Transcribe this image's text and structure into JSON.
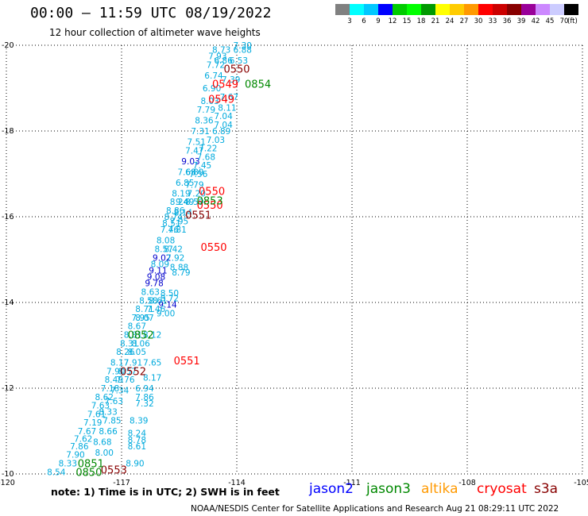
{
  "title": "00:00 — 11:59 UTC 08/19/2022",
  "subtitle": "12 hour collection of altimeter wave heights",
  "note": "note: 1) Time is in UTC; 2) SWH is in feet",
  "credit": "NOAA/NESDIS Center for Satellite Applications and Research   Aug 21 08:29:11 UTC 2022",
  "colorbar": {
    "unit": "(ft)",
    "ticks": [
      "3",
      "6",
      "9",
      "12",
      "15",
      "18",
      "21",
      "24",
      "27",
      "30",
      "33",
      "36",
      "39",
      "42",
      "45",
      "70"
    ],
    "colors": [
      "#808080",
      "#00ffff",
      "#00c8ff",
      "#0000ff",
      "#00cc00",
      "#00ff00",
      "#009900",
      "#ffff00",
      "#ffcc00",
      "#ff9900",
      "#ff0000",
      "#cc0000",
      "#880000",
      "#990099",
      "#cc88ff",
      "#ccccff",
      "#000000"
    ]
  },
  "satellites": [
    {
      "name": "jason2",
      "color": "#0000ff"
    },
    {
      "name": "jason3",
      "color": "#008800"
    },
    {
      "name": "altika",
      "color": "#ff9900"
    },
    {
      "name": "cryosat",
      "color": "#ff0000"
    },
    {
      "name": "s3a",
      "color": "#880000"
    }
  ],
  "chart_data": {
    "type": "scatter",
    "xlim": [
      -120,
      -105
    ],
    "ylim": [
      -20,
      -10
    ],
    "xticks": [
      "-120",
      "-117",
      "-114",
      "-111",
      "-108",
      "-105"
    ],
    "yticks": [
      "-10",
      "-12",
      "-14",
      "-16",
      "-18",
      "-20"
    ],
    "grid": true,
    "points": [
      {
        "lon": -118.7,
        "lat": -10.05,
        "label": "8.54",
        "color": "#00aadd"
      },
      {
        "lon": -118.4,
        "lat": -10.25,
        "label": "8.33",
        "color": "#00aadd"
      },
      {
        "lon": -118.2,
        "lat": -10.45,
        "label": "7.90",
        "color": "#00aadd"
      },
      {
        "lon": -118.1,
        "lat": -10.65,
        "label": "7.86",
        "color": "#00aadd"
      },
      {
        "lon": -118.0,
        "lat": -10.82,
        "label": "7.62",
        "color": "#00aadd"
      },
      {
        "lon": -117.9,
        "lat": -11.0,
        "label": "7.67",
        "color": "#00aadd"
      },
      {
        "lon": -117.75,
        "lat": -11.2,
        "label": "7.19",
        "color": "#00aadd"
      },
      {
        "lon": -117.65,
        "lat": -11.4,
        "label": "7.61",
        "color": "#00aadd"
      },
      {
        "lon": -117.55,
        "lat": -11.6,
        "label": "7.63",
        "color": "#00aadd"
      },
      {
        "lon": -117.45,
        "lat": -11.8,
        "label": "8.62",
        "color": "#00aadd"
      },
      {
        "lon": -117.3,
        "lat": -12.0,
        "label": "7.18",
        "color": "#00aadd"
      },
      {
        "lon": -117.2,
        "lat": -12.2,
        "label": "8.49",
        "color": "#00aadd"
      },
      {
        "lon": -117.15,
        "lat": -12.4,
        "label": "7.90",
        "color": "#00aadd"
      },
      {
        "lon": -117.05,
        "lat": -12.6,
        "label": "8.17",
        "color": "#00aadd"
      },
      {
        "lon": -116.9,
        "lat": -12.85,
        "label": "8.26",
        "color": "#00aadd"
      },
      {
        "lon": -116.8,
        "lat": -13.05,
        "label": "8.31",
        "color": "#00aadd"
      },
      {
        "lon": -116.7,
        "lat": -13.25,
        "label": "8.81",
        "color": "#00aadd"
      },
      {
        "lon": -116.6,
        "lat": -13.45,
        "label": "8.67",
        "color": "#00aadd"
      },
      {
        "lon": -116.5,
        "lat": -13.65,
        "label": "7.95",
        "color": "#00aadd"
      },
      {
        "lon": -116.4,
        "lat": -13.85,
        "label": "8.71",
        "color": "#00aadd"
      },
      {
        "lon": -116.3,
        "lat": -14.05,
        "label": "8.58",
        "color": "#00aadd"
      },
      {
        "lon": -116.25,
        "lat": -14.25,
        "label": "8.63",
        "color": "#00aadd"
      },
      {
        "lon": -116.15,
        "lat": -14.45,
        "label": "9.78",
        "color": "#0000cc"
      },
      {
        "lon": -116.1,
        "lat": -14.6,
        "label": "9.08",
        "color": "#0000cc"
      },
      {
        "lon": -116.05,
        "lat": -14.75,
        "label": "9.11",
        "color": "#0000cc"
      },
      {
        "lon": -116.0,
        "lat": -14.9,
        "label": "8.09",
        "color": "#00aadd"
      },
      {
        "lon": -115.95,
        "lat": -15.05,
        "label": "9.02",
        "color": "#0000cc"
      },
      {
        "lon": -115.9,
        "lat": -15.25,
        "label": "8.57",
        "color": "#00aadd"
      },
      {
        "lon": -115.85,
        "lat": -15.45,
        "label": "8.08",
        "color": "#00aadd"
      },
      {
        "lon": -115.75,
        "lat": -15.7,
        "label": "7.46",
        "color": "#00aadd"
      },
      {
        "lon": -115.7,
        "lat": -15.85,
        "label": "8.51",
        "color": "#00aadd"
      },
      {
        "lon": -115.65,
        "lat": -16.0,
        "label": "8.74",
        "color": "#00aadd"
      },
      {
        "lon": -115.6,
        "lat": -16.15,
        "label": "8.86",
        "color": "#00aadd"
      },
      {
        "lon": -115.5,
        "lat": -16.35,
        "label": "8.24",
        "color": "#00aadd"
      },
      {
        "lon": -115.45,
        "lat": -16.55,
        "label": "8.19",
        "color": "#00aadd"
      },
      {
        "lon": -115.35,
        "lat": -16.8,
        "label": "6.85",
        "color": "#00aadd"
      },
      {
        "lon": -115.3,
        "lat": -17.05,
        "label": "7.68",
        "color": "#00aadd"
      },
      {
        "lon": -115.2,
        "lat": -17.3,
        "label": "9.03",
        "color": "#0000cc"
      },
      {
        "lon": -115.1,
        "lat": -17.55,
        "label": "7.47",
        "color": "#00aadd"
      },
      {
        "lon": -115.05,
        "lat": -17.75,
        "label": "7.51",
        "color": "#00aadd"
      },
      {
        "lon": -114.95,
        "lat": -18.0,
        "label": "7.31",
        "color": "#00aadd"
      },
      {
        "lon": -114.85,
        "lat": -18.25,
        "label": "8.36",
        "color": "#00aadd"
      },
      {
        "lon": -114.8,
        "lat": -18.5,
        "label": "7.79",
        "color": "#00aadd"
      },
      {
        "lon": -114.7,
        "lat": -18.7,
        "label": "8.03",
        "color": "#00aadd"
      },
      {
        "lon": -114.65,
        "lat": -19.0,
        "label": "6.90",
        "color": "#00aadd"
      },
      {
        "lon": -114.6,
        "lat": -19.3,
        "label": "6.74",
        "color": "#00aadd"
      },
      {
        "lon": -114.55,
        "lat": -19.55,
        "label": "7.72",
        "color": "#00aadd"
      },
      {
        "lon": -114.5,
        "lat": -19.75,
        "label": "7.93",
        "color": "#00aadd"
      },
      {
        "lon": -114.4,
        "lat": -19.9,
        "label": "8.73",
        "color": "#00aadd"
      },
      {
        "lon": -116.65,
        "lat": -10.25,
        "label": "8.90",
        "color": "#00aadd"
      },
      {
        "lon": -117.45,
        "lat": -10.5,
        "label": "8.00",
        "color": "#00aadd"
      },
      {
        "lon": -117.5,
        "lat": -10.75,
        "label": "8.68",
        "color": "#00aadd"
      },
      {
        "lon": -116.6,
        "lat": -10.65,
        "label": "8.61",
        "color": "#00aadd"
      },
      {
        "lon": -116.6,
        "lat": -10.8,
        "label": "8.78",
        "color": "#00aadd"
      },
      {
        "lon": -116.6,
        "lat": -10.95,
        "label": "8.24",
        "color": "#00aadd"
      },
      {
        "lon": -117.35,
        "lat": -11.0,
        "label": "8.66",
        "color": "#00aadd"
      },
      {
        "lon": -117.25,
        "lat": -11.25,
        "label": "7.85",
        "color": "#00aadd"
      },
      {
        "lon": -116.55,
        "lat": -11.25,
        "label": "8.39",
        "color": "#00aadd"
      },
      {
        "lon": -117.35,
        "lat": -11.45,
        "label": "8.33",
        "color": "#00aadd"
      },
      {
        "lon": -117.2,
        "lat": -11.7,
        "label": "7.63",
        "color": "#00aadd"
      },
      {
        "lon": -116.4,
        "lat": -11.65,
        "label": "7.32",
        "color": "#00aadd"
      },
      {
        "lon": -116.4,
        "lat": -11.8,
        "label": "7.86",
        "color": "#00aadd"
      },
      {
        "lon": -117.05,
        "lat": -11.95,
        "label": "7.34",
        "color": "#00aadd"
      },
      {
        "lon": -116.4,
        "lat": -12.0,
        "label": "6.94",
        "color": "#00aadd"
      },
      {
        "lon": -116.9,
        "lat": -12.2,
        "label": "7.76",
        "color": "#00aadd"
      },
      {
        "lon": -116.2,
        "lat": -12.25,
        "label": "8.17",
        "color": "#00aadd"
      },
      {
        "lon": -116.85,
        "lat": -12.4,
        "label": "8.57",
        "color": "#00aadd"
      },
      {
        "lon": -116.7,
        "lat": -12.6,
        "label": "7.91",
        "color": "#00aadd"
      },
      {
        "lon": -116.2,
        "lat": -12.6,
        "label": "7.65",
        "color": "#00aadd"
      },
      {
        "lon": -116.6,
        "lat": -12.85,
        "label": "8.05",
        "color": "#00aadd"
      },
      {
        "lon": -116.5,
        "lat": -13.05,
        "label": "8.06",
        "color": "#00aadd"
      },
      {
        "lon": -116.2,
        "lat": -13.25,
        "label": "8.12",
        "color": "#00aadd"
      },
      {
        "lon": -116.4,
        "lat": -13.65,
        "label": "8.07",
        "color": "#00aadd"
      },
      {
        "lon": -115.85,
        "lat": -13.75,
        "label": "9.00",
        "color": "#00aadd"
      },
      {
        "lon": -115.8,
        "lat": -13.95,
        "label": "9.14",
        "color": "#0000cc"
      },
      {
        "lon": -116.1,
        "lat": -13.85,
        "label": "7.46",
        "color": "#00aadd"
      },
      {
        "lon": -116.05,
        "lat": -14.05,
        "label": "8.61",
        "color": "#00aadd"
      },
      {
        "lon": -115.75,
        "lat": -14.1,
        "label": "8.72",
        "color": "#00aadd"
      },
      {
        "lon": -115.75,
        "lat": -14.22,
        "label": "8.50",
        "color": "#00aadd"
      },
      {
        "lon": -115.45,
        "lat": -14.7,
        "label": "8.79",
        "color": "#00aadd"
      },
      {
        "lon": -115.5,
        "lat": -14.82,
        "label": "8.88",
        "color": "#00aadd"
      },
      {
        "lon": -115.6,
        "lat": -15.05,
        "label": "7.92",
        "color": "#00aadd"
      },
      {
        "lon": -115.65,
        "lat": -15.25,
        "label": "8.42",
        "color": "#00aadd"
      },
      {
        "lon": -115.55,
        "lat": -15.7,
        "label": "7.81",
        "color": "#00aadd"
      },
      {
        "lon": -115.5,
        "lat": -15.9,
        "label": "7.95",
        "color": "#00aadd"
      },
      {
        "lon": -115.4,
        "lat": -16.1,
        "label": "8.14",
        "color": "#00aadd"
      },
      {
        "lon": -115.1,
        "lat": -16.35,
        "label": "8.59",
        "color": "#00aadd"
      },
      {
        "lon": -115.35,
        "lat": -16.35,
        "label": "9.49",
        "color": "#00aadd"
      },
      {
        "lon": -115.05,
        "lat": -16.55,
        "label": "7.20",
        "color": "#00aadd"
      },
      {
        "lon": -115.1,
        "lat": -16.75,
        "label": "7.79",
        "color": "#00aadd"
      },
      {
        "lon": -115.0,
        "lat": -17.0,
        "label": "7.56",
        "color": "#00aadd"
      },
      {
        "lon": -115.1,
        "lat": -17.05,
        "label": "6.89",
        "color": "#00aadd"
      },
      {
        "lon": -114.9,
        "lat": -17.2,
        "label": "7.45",
        "color": "#00aadd"
      },
      {
        "lon": -114.8,
        "lat": -17.4,
        "label": "7.68",
        "color": "#00aadd"
      },
      {
        "lon": -114.75,
        "lat": -17.6,
        "label": "7.22",
        "color": "#00aadd"
      },
      {
        "lon": -114.55,
        "lat": -17.8,
        "label": "7.03",
        "color": "#00aadd"
      },
      {
        "lon": -114.4,
        "lat": -18.0,
        "label": "6.89",
        "color": "#00aadd"
      },
      {
        "lon": -114.35,
        "lat": -18.15,
        "label": "7.04",
        "color": "#00aadd"
      },
      {
        "lon": -114.35,
        "lat": -18.35,
        "label": "7.04",
        "color": "#00aadd"
      },
      {
        "lon": -114.25,
        "lat": -18.55,
        "label": "8.11",
        "color": "#00aadd"
      },
      {
        "lon": -114.2,
        "lat": -18.8,
        "label": "7.67",
        "color": "#00aadd"
      },
      {
        "lon": -114.15,
        "lat": -19.2,
        "label": "7.39",
        "color": "#00aadd"
      },
      {
        "lon": -113.95,
        "lat": -19.65,
        "label": "6.53",
        "color": "#00aadd"
      },
      {
        "lon": -113.85,
        "lat": -19.9,
        "label": "6.88",
        "color": "#00aadd"
      },
      {
        "lon": -113.85,
        "lat": -20.0,
        "label": "7.30",
        "color": "#00aadd"
      },
      {
        "lon": -114.35,
        "lat": -19.65,
        "label": "6.86",
        "color": "#00aadd"
      }
    ],
    "time_labels": [
      {
        "lon": -117.85,
        "lat": -10.05,
        "label": "0850",
        "color": "#008800"
      },
      {
        "lon": -117.2,
        "lat": -10.1,
        "label": "0553",
        "color": "#880000"
      },
      {
        "lon": -117.8,
        "lat": -10.25,
        "label": "0851",
        "color": "#008800"
      },
      {
        "lon": -116.7,
        "lat": -12.4,
        "label": "0552",
        "color": "#880000"
      },
      {
        "lon": -115.3,
        "lat": -12.65,
        "label": "0551",
        "color": "#ff0000"
      },
      {
        "lon": -116.5,
        "lat": -13.25,
        "label": "0852",
        "color": "#008800"
      },
      {
        "lon": -114.6,
        "lat": -15.3,
        "label": "0550",
        "color": "#ff0000"
      },
      {
        "lon": -115.0,
        "lat": -16.05,
        "label": "0551",
        "color": "#880000"
      },
      {
        "lon": -114.7,
        "lat": -16.28,
        "label": "0550",
        "color": "#ff0000"
      },
      {
        "lon": -114.7,
        "lat": -16.38,
        "label": "0853",
        "color": "#008800"
      },
      {
        "lon": -114.65,
        "lat": -16.6,
        "label": "0550",
        "color": "#ff0000"
      },
      {
        "lon": -114.4,
        "lat": -18.75,
        "label": "0549",
        "color": "#ff0000"
      },
      {
        "lon": -114.3,
        "lat": -19.1,
        "label": "0549",
        "color": "#ff0000"
      },
      {
        "lon": -113.45,
        "lat": -19.1,
        "label": "0854",
        "color": "#008800"
      },
      {
        "lon": -114.0,
        "lat": -19.45,
        "label": "0550",
        "color": "#880000"
      }
    ]
  }
}
